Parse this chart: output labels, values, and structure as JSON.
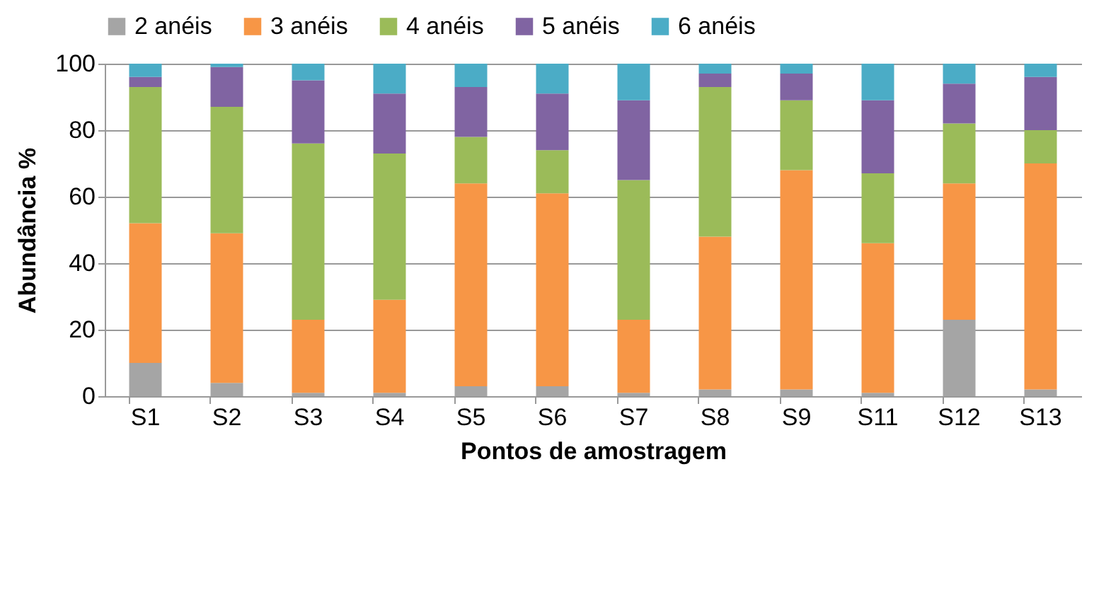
{
  "chart_data": {
    "type": "bar",
    "stacked": true,
    "xlabel": "Pontos de amostragem",
    "ylabel": "Abundância %",
    "categories": [
      "S1",
      "S2",
      "S3",
      "S4",
      "S5",
      "S6",
      "S7",
      "S8",
      "S9",
      "S11",
      "S12",
      "S13"
    ],
    "series": [
      {
        "name": "2 anéis",
        "color": "#a5a5a5",
        "values": [
          10,
          4,
          1,
          1,
          3,
          3,
          1,
          2,
          2,
          1,
          23,
          2
        ]
      },
      {
        "name": "3 anéis",
        "color": "#f79646",
        "values": [
          42,
          45,
          22,
          28,
          61,
          58,
          22,
          46,
          66,
          45,
          41,
          68
        ]
      },
      {
        "name": "4 anéis",
        "color": "#9bbb59",
        "values": [
          41,
          38,
          53,
          44,
          14,
          13,
          42,
          45,
          21,
          21,
          18,
          10
        ]
      },
      {
        "name": "5 anéis",
        "color": "#8064a2",
        "values": [
          3,
          12,
          19,
          18,
          15,
          17,
          24,
          4,
          8,
          22,
          12,
          16
        ]
      },
      {
        "name": "6 anéis",
        "color": "#4bacc6",
        "values": [
          4,
          1,
          5,
          9,
          7,
          9,
          11,
          3,
          3,
          11,
          6,
          4
        ]
      }
    ],
    "ylim": [
      0,
      100
    ],
    "yticks": [
      0,
      20,
      40,
      60,
      80,
      100
    ],
    "grid": "y",
    "legend": "top"
  }
}
